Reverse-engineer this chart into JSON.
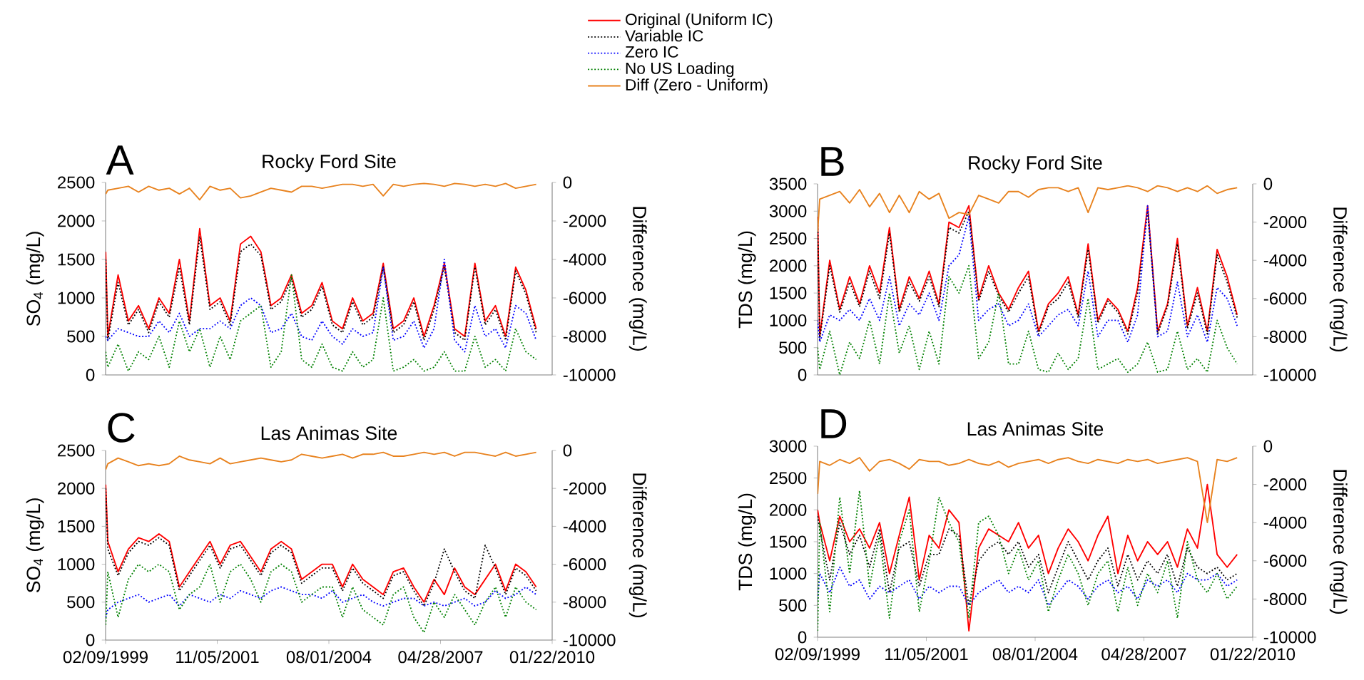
{
  "chart_data": [
    {
      "type": "line",
      "title": "Rocky Ford Site",
      "annotations": [
        "A"
      ],
      "ylabel": "SO$_{4}$ (mg/L)",
      "y2label": "Difference (mg/L)",
      "legend": "top",
      "tick_labels": [
        "y",
        "y2"
      ],
      "xlim": [
        "1999-02-09",
        "2010-01-22"
      ],
      "ylim": [
        0,
        2500
      ],
      "yticks": [
        0,
        500,
        1000,
        1500,
        2000,
        2500
      ],
      "y2lim": [
        -10000,
        0
      ],
      "y2ticks": [
        -10000,
        -8000,
        -6000,
        -4000,
        -2000,
        0
      ],
      "x": [
        "1999-02-10",
        "1999-03-01",
        "1999-06-01",
        "1999-09-01",
        "1999-12-01",
        "2000-03-01",
        "2000-06-01",
        "2000-09-01",
        "2000-12-01",
        "2001-03-01",
        "2001-06-01",
        "2001-09-01",
        "2001-12-01",
        "2002-03-01",
        "2002-06-01",
        "2002-09-01",
        "2002-12-01",
        "2003-03-01",
        "2003-06-01",
        "2003-09-01",
        "2003-12-01",
        "2004-03-01",
        "2004-06-01",
        "2004-09-01",
        "2004-12-01",
        "2005-03-01",
        "2005-06-01",
        "2005-09-01",
        "2005-12-01",
        "2006-03-01",
        "2006-06-01",
        "2006-09-01",
        "2006-12-01",
        "2007-03-01",
        "2007-06-01",
        "2007-09-01",
        "2007-12-01",
        "2008-03-01",
        "2008-06-01",
        "2008-09-01",
        "2008-12-01",
        "2009-03-01",
        "2009-06-01",
        "2009-09-01"
      ],
      "series": [
        {
          "name": "Original (Uniform IC)",
          "color": "#ff0000",
          "line_style": "solid",
          "values": [
            1600,
            500,
            1300,
            700,
            900,
            600,
            1000,
            800,
            1500,
            700,
            1900,
            900,
            1000,
            700,
            1700,
            1800,
            1600,
            900,
            1000,
            1300,
            800,
            900,
            1200,
            700,
            600,
            1000,
            700,
            800,
            1450,
            600,
            700,
            1000,
            500,
            900,
            1450,
            600,
            500,
            1450,
            700,
            900,
            500,
            1400,
            1100,
            600
          ]
        },
        {
          "name": "Variable IC",
          "color": "#000000",
          "line_style": "dotted",
          "values": [
            1500,
            450,
            1200,
            650,
            850,
            550,
            950,
            750,
            1400,
            650,
            1800,
            850,
            950,
            650,
            1600,
            1700,
            1550,
            850,
            950,
            1250,
            750,
            850,
            1150,
            650,
            550,
            950,
            650,
            750,
            1400,
            550,
            650,
            950,
            450,
            850,
            1400,
            550,
            450,
            1400,
            650,
            850,
            450,
            1350,
            1050,
            550
          ]
        },
        {
          "name": "Zero IC",
          "color": "#0000ff",
          "line_style": "dotted",
          "values": [
            500,
            450,
            600,
            550,
            500,
            500,
            700,
            550,
            800,
            500,
            600,
            600,
            700,
            600,
            900,
            1000,
            900,
            550,
            600,
            800,
            500,
            450,
            700,
            500,
            400,
            600,
            500,
            550,
            1400,
            450,
            500,
            700,
            350,
            600,
            1500,
            450,
            300,
            900,
            500,
            600,
            350,
            900,
            800,
            450
          ]
        },
        {
          "name": "No US Loading",
          "color": "#008000",
          "line_style": "dotted",
          "values": [
            300,
            100,
            400,
            50,
            300,
            200,
            500,
            100,
            700,
            300,
            600,
            100,
            500,
            200,
            700,
            800,
            900,
            100,
            300,
            1300,
            200,
            100,
            400,
            100,
            50,
            300,
            100,
            200,
            1000,
            50,
            100,
            200,
            50,
            100,
            300,
            50,
            50,
            500,
            100,
            200,
            50,
            600,
            300,
            200
          ]
        },
        {
          "name": "Diff (Zero - Uniform)",
          "color": "#e8821e",
          "line_style": "solid",
          "axis": "y2",
          "values": [
            -600,
            -400,
            -300,
            -200,
            -500,
            -200,
            -400,
            -300,
            -600,
            -300,
            -900,
            -200,
            -400,
            -300,
            -800,
            -700,
            -500,
            -300,
            -400,
            -500,
            -200,
            -200,
            -300,
            -200,
            -100,
            -100,
            -200,
            -100,
            -700,
            -100,
            -200,
            -100,
            -50,
            -100,
            -200,
            -50,
            -100,
            -200,
            -100,
            -200,
            -50,
            -300,
            -200,
            -100
          ]
        }
      ]
    },
    {
      "type": "line",
      "title": "Rocky Ford Site",
      "annotations": [
        "B"
      ],
      "ylabel": "TDS (mg/L)",
      "y2label": "Difference (mg/L)",
      "tick_labels": [
        "y",
        "y2"
      ],
      "xlim": [
        "1999-02-09",
        "2010-01-22"
      ],
      "ylim": [
        0,
        3500
      ],
      "yticks": [
        0,
        500,
        1000,
        1500,
        2000,
        2500,
        3000,
        3500
      ],
      "y2lim": [
        -10000,
        0
      ],
      "y2ticks": [
        -10000,
        -8000,
        -6000,
        -4000,
        -2000,
        0
      ],
      "x": [
        "1999-02-10",
        "1999-03-01",
        "1999-06-01",
        "1999-09-01",
        "1999-12-01",
        "2000-03-01",
        "2000-06-01",
        "2000-09-01",
        "2000-12-01",
        "2001-03-01",
        "2001-06-01",
        "2001-09-01",
        "2001-12-01",
        "2002-03-01",
        "2002-06-01",
        "2002-09-01",
        "2002-12-01",
        "2003-03-01",
        "2003-06-01",
        "2003-09-01",
        "2003-12-01",
        "2004-03-01",
        "2004-06-01",
        "2004-09-01",
        "2004-12-01",
        "2005-03-01",
        "2005-06-01",
        "2005-09-01",
        "2005-12-01",
        "2006-03-01",
        "2006-06-01",
        "2006-09-01",
        "2006-12-01",
        "2007-03-01",
        "2007-06-01",
        "2007-09-01",
        "2007-12-01",
        "2008-03-01",
        "2008-06-01",
        "2008-09-01",
        "2008-12-01",
        "2009-03-01",
        "2009-06-01",
        "2009-09-01"
      ],
      "series": [
        {
          "color": "#ff0000",
          "line_style": "solid",
          "values": [
            2900,
            700,
            2100,
            1200,
            1800,
            1300,
            2000,
            1500,
            2700,
            1200,
            1800,
            1400,
            1900,
            1300,
            2800,
            2700,
            3100,
            1400,
            2000,
            1500,
            1200,
            1600,
            1900,
            800,
            1300,
            1500,
            1800,
            1100,
            2400,
            1000,
            1400,
            1200,
            800,
            1600,
            3100,
            800,
            1300,
            2500,
            900,
            1600,
            800,
            2300,
            1800,
            1100
          ]
        },
        {
          "color": "#000000",
          "line_style": "dotted",
          "values": [
            2800,
            650,
            2000,
            1150,
            1700,
            1250,
            1900,
            1400,
            2600,
            1150,
            1700,
            1350,
            1800,
            1250,
            2700,
            2600,
            3000,
            1350,
            1900,
            1450,
            1150,
            1500,
            1800,
            750,
            1250,
            1400,
            1700,
            1050,
            2300,
            950,
            1350,
            1150,
            750,
            1500,
            3000,
            750,
            1250,
            2400,
            850,
            1500,
            750,
            2200,
            1700,
            1050
          ]
        },
        {
          "color": "#0000ff",
          "line_style": "dotted",
          "values": [
            1000,
            600,
            1100,
            1000,
            1200,
            1000,
            1400,
            1000,
            1800,
            900,
            1300,
            1100,
            1500,
            1000,
            2000,
            2200,
            2900,
            1000,
            1200,
            1300,
            900,
            1000,
            1300,
            700,
            900,
            1100,
            1200,
            900,
            1900,
            700,
            1000,
            1000,
            600,
            1100,
            3100,
            700,
            800,
            1700,
            700,
            1100,
            600,
            1600,
            1400,
            900
          ]
        },
        {
          "color": "#008000",
          "line_style": "dotted",
          "values": [
            500,
            100,
            800,
            0,
            600,
            300,
            1000,
            200,
            1500,
            400,
            900,
            100,
            800,
            200,
            1800,
            1500,
            2000,
            300,
            600,
            1500,
            200,
            200,
            800,
            100,
            50,
            400,
            100,
            300,
            1400,
            100,
            200,
            300,
            50,
            200,
            600,
            50,
            100,
            800,
            100,
            300,
            50,
            1000,
            500,
            200
          ]
        },
        {
          "color": "#e8821e",
          "line_style": "solid",
          "axis": "y2",
          "values": [
            -2500,
            -800,
            -600,
            -400,
            -1000,
            -300,
            -1200,
            -500,
            -1500,
            -600,
            -1500,
            -400,
            -800,
            -500,
            -1800,
            -1500,
            -1600,
            -600,
            -800,
            -1000,
            -400,
            -400,
            -700,
            -300,
            -200,
            -200,
            -400,
            -200,
            -1500,
            -200,
            -300,
            -200,
            -100,
            -200,
            -400,
            -100,
            -200,
            -400,
            -200,
            -400,
            -100,
            -500,
            -300,
            -200
          ]
        }
      ]
    },
    {
      "type": "line",
      "title": "Las Animas Site",
      "annotations": [
        "C"
      ],
      "ylabel": "SO$_{4}$ (mg/L)",
      "y2label": "Difference (mg/L)",
      "xlim": [
        "1999-02-09",
        "2010-01-22"
      ],
      "xticks": [
        {
          "value": "1999-02-09",
          "label": "02/09/1999"
        },
        {
          "value": "2001-11-05",
          "label": "11/05/2001"
        },
        {
          "value": "2004-08-01",
          "label": "08/01/2004"
        },
        {
          "value": "2007-04-28",
          "label": "04/28/2007"
        },
        {
          "value": "2010-01-22",
          "label": "01/22/2010"
        }
      ],
      "ylim": [
        0,
        2500
      ],
      "yticks": [
        0,
        500,
        1000,
        1500,
        2000,
        2500
      ],
      "y2lim": [
        -10000,
        0
      ],
      "y2ticks": [
        -10000,
        -8000,
        -6000,
        -4000,
        -2000,
        0
      ],
      "x": [
        "1999-02-10",
        "1999-03-01",
        "1999-06-01",
        "1999-09-01",
        "1999-12-01",
        "2000-03-01",
        "2000-06-01",
        "2000-09-01",
        "2000-12-01",
        "2001-03-01",
        "2001-06-01",
        "2001-09-01",
        "2001-12-01",
        "2002-03-01",
        "2002-06-01",
        "2002-09-01",
        "2002-12-01",
        "2003-03-01",
        "2003-06-01",
        "2003-09-01",
        "2003-12-01",
        "2004-03-01",
        "2004-06-01",
        "2004-09-01",
        "2004-12-01",
        "2005-03-01",
        "2005-06-01",
        "2005-09-01",
        "2005-12-01",
        "2006-03-01",
        "2006-06-01",
        "2006-09-01",
        "2006-12-01",
        "2007-03-01",
        "2007-06-01",
        "2007-09-01",
        "2007-12-01",
        "2008-03-01",
        "2008-06-01",
        "2008-09-01",
        "2008-12-01",
        "2009-03-01",
        "2009-06-01",
        "2009-09-01"
      ],
      "series": [
        {
          "color": "#ff0000",
          "line_style": "solid",
          "values": [
            2050,
            1300,
            900,
            1200,
            1350,
            1300,
            1400,
            1300,
            700,
            900,
            1100,
            1300,
            1000,
            1250,
            1300,
            1100,
            900,
            1200,
            1300,
            1200,
            800,
            900,
            1000,
            1000,
            700,
            1000,
            800,
            700,
            600,
            900,
            950,
            700,
            500,
            800,
            600,
            950,
            700,
            600,
            800,
            1000,
            650,
            1000,
            900,
            700
          ]
        },
        {
          "color": "#000000",
          "line_style": "dotted",
          "values": [
            2000,
            1200,
            850,
            1150,
            1300,
            1250,
            1350,
            1250,
            650,
            850,
            1050,
            1250,
            950,
            1200,
            1250,
            1050,
            850,
            1150,
            1250,
            1150,
            750,
            850,
            950,
            950,
            650,
            950,
            750,
            650,
            550,
            850,
            900,
            650,
            450,
            750,
            1200,
            900,
            650,
            550,
            1250,
            950,
            600,
            950,
            850,
            650
          ]
        },
        {
          "color": "#0000ff",
          "line_style": "dotted",
          "values": [
            300,
            400,
            500,
            550,
            600,
            500,
            550,
            600,
            450,
            600,
            550,
            500,
            600,
            550,
            650,
            600,
            550,
            650,
            700,
            650,
            600,
            600,
            550,
            650,
            500,
            550,
            600,
            500,
            450,
            500,
            550,
            550,
            450,
            500,
            450,
            500,
            550,
            450,
            500,
            650,
            550,
            600,
            700,
            600
          ]
        },
        {
          "color": "#008000",
          "line_style": "dotted",
          "values": [
            200,
            900,
            300,
            800,
            1000,
            900,
            1000,
            900,
            400,
            600,
            700,
            1000,
            500,
            900,
            1000,
            800,
            500,
            900,
            1000,
            900,
            500,
            600,
            700,
            700,
            300,
            700,
            400,
            300,
            200,
            600,
            700,
            300,
            100,
            500,
            300,
            600,
            400,
            200,
            500,
            700,
            300,
            700,
            500,
            400
          ]
        },
        {
          "color": "#e8821e",
          "line_style": "solid",
          "axis": "y2",
          "values": [
            -1000,
            -700,
            -400,
            -600,
            -800,
            -700,
            -800,
            -700,
            -300,
            -500,
            -600,
            -700,
            -400,
            -700,
            -600,
            -500,
            -400,
            -500,
            -600,
            -500,
            -200,
            -300,
            -400,
            -300,
            -200,
            -400,
            -200,
            -200,
            -100,
            -300,
            -300,
            -200,
            -100,
            -200,
            -100,
            -300,
            -100,
            -100,
            -200,
            -300,
            -100,
            -300,
            -200,
            -100
          ]
        }
      ]
    },
    {
      "type": "line",
      "title": "Las Animas Site",
      "annotations": [
        "D"
      ],
      "ylabel": "TDS (mg/L)",
      "y2label": "Difference (mg/L)",
      "xlim": [
        "1999-02-09",
        "2010-01-22"
      ],
      "xticks": [
        {
          "value": "1999-02-09",
          "label": "02/09/1999"
        },
        {
          "value": "2001-11-05",
          "label": "11/05/2001"
        },
        {
          "value": "2004-08-01",
          "label": "08/01/2004"
        },
        {
          "value": "2007-04-28",
          "label": "04/28/2007"
        },
        {
          "value": "2010-01-22",
          "label": "01/22/2010"
        }
      ],
      "ylim": [
        0,
        3000
      ],
      "yticks": [
        0,
        500,
        1000,
        1500,
        2000,
        2500,
        3000
      ],
      "y2lim": [
        -10000,
        0
      ],
      "y2ticks": [
        -10000,
        -8000,
        -6000,
        -4000,
        -2000,
        0
      ],
      "x": [
        "1999-02-10",
        "1999-03-01",
        "1999-06-01",
        "1999-09-01",
        "1999-12-01",
        "2000-03-01",
        "2000-06-01",
        "2000-09-01",
        "2000-12-01",
        "2001-03-01",
        "2001-06-01",
        "2001-09-01",
        "2001-12-01",
        "2002-03-01",
        "2002-06-01",
        "2002-09-01",
        "2002-12-01",
        "2003-03-01",
        "2003-06-01",
        "2003-09-01",
        "2003-12-01",
        "2004-03-01",
        "2004-06-01",
        "2004-09-01",
        "2004-12-01",
        "2005-03-01",
        "2005-06-01",
        "2005-09-01",
        "2005-12-01",
        "2006-03-01",
        "2006-06-01",
        "2006-09-01",
        "2006-12-01",
        "2007-03-01",
        "2007-06-01",
        "2007-09-01",
        "2007-12-01",
        "2008-03-01",
        "2008-06-01",
        "2008-09-01",
        "2008-12-01",
        "2009-03-01",
        "2009-06-01",
        "2009-09-01"
      ],
      "series": [
        {
          "color": "#ff0000",
          "line_style": "solid",
          "values": [
            2000,
            1800,
            1200,
            1900,
            1500,
            1700,
            1400,
            1800,
            1000,
            1600,
            2200,
            900,
            1600,
            1400,
            2000,
            1800,
            100,
            1400,
            1700,
            1600,
            1500,
            1800,
            1400,
            1600,
            1000,
            1400,
            1700,
            1500,
            1200,
            1600,
            1900,
            1000,
            1600,
            1200,
            1500,
            1300,
            1500,
            1100,
            1700,
            1400,
            2400,
            1300,
            1100,
            1300
          ]
        },
        {
          "color": "#000000",
          "line_style": "dotted",
          "values": [
            1900,
            1700,
            900,
            1800,
            1300,
            1600,
            1100,
            1700,
            700,
            1400,
            1500,
            800,
            1300,
            1300,
            1700,
            1600,
            500,
            1200,
            1400,
            1500,
            1300,
            1500,
            1100,
            1300,
            700,
            1100,
            1500,
            1200,
            900,
            1200,
            1400,
            800,
            1300,
            900,
            1200,
            1000,
            1300,
            800,
            1400,
            1100,
            1000,
            1100,
            900,
            1000
          ]
        },
        {
          "color": "#0000ff",
          "line_style": "dotted",
          "values": [
            600,
            1000,
            700,
            1100,
            800,
            900,
            600,
            800,
            700,
            800,
            900,
            600,
            800,
            700,
            800,
            800,
            500,
            700,
            800,
            900,
            700,
            800,
            700,
            900,
            500,
            700,
            900,
            800,
            600,
            800,
            900,
            700,
            800,
            600,
            900,
            800,
            900,
            700,
            1000,
            900,
            900,
            1000,
            800,
            900
          ]
        },
        {
          "color": "#008000",
          "line_style": "dotted",
          "values": [
            100,
            1800,
            400,
            2200,
            1000,
            2300,
            800,
            1600,
            300,
            1500,
            2000,
            400,
            1200,
            2200,
            1800,
            1500,
            300,
            1800,
            1900,
            1600,
            1000,
            1400,
            900,
            1200,
            400,
            900,
            1300,
            1000,
            500,
            1000,
            1200,
            400,
            1100,
            500,
            1000,
            700,
            1200,
            300,
            1500,
            900,
            700,
            1000,
            600,
            800
          ]
        },
        {
          "color": "#e8821e",
          "line_style": "solid",
          "axis": "y2",
          "values": [
            -2500,
            -800,
            -1000,
            -700,
            -900,
            -600,
            -1300,
            -800,
            -700,
            -900,
            -1200,
            -700,
            -800,
            -800,
            -1000,
            -900,
            -700,
            -900,
            -1000,
            -800,
            -1100,
            -900,
            -800,
            -700,
            -900,
            -700,
            -600,
            -800,
            -900,
            -700,
            -800,
            -900,
            -700,
            -800,
            -700,
            -900,
            -800,
            -700,
            -600,
            -800,
            -4000,
            -700,
            -800,
            -600
          ]
        }
      ]
    }
  ]
}
